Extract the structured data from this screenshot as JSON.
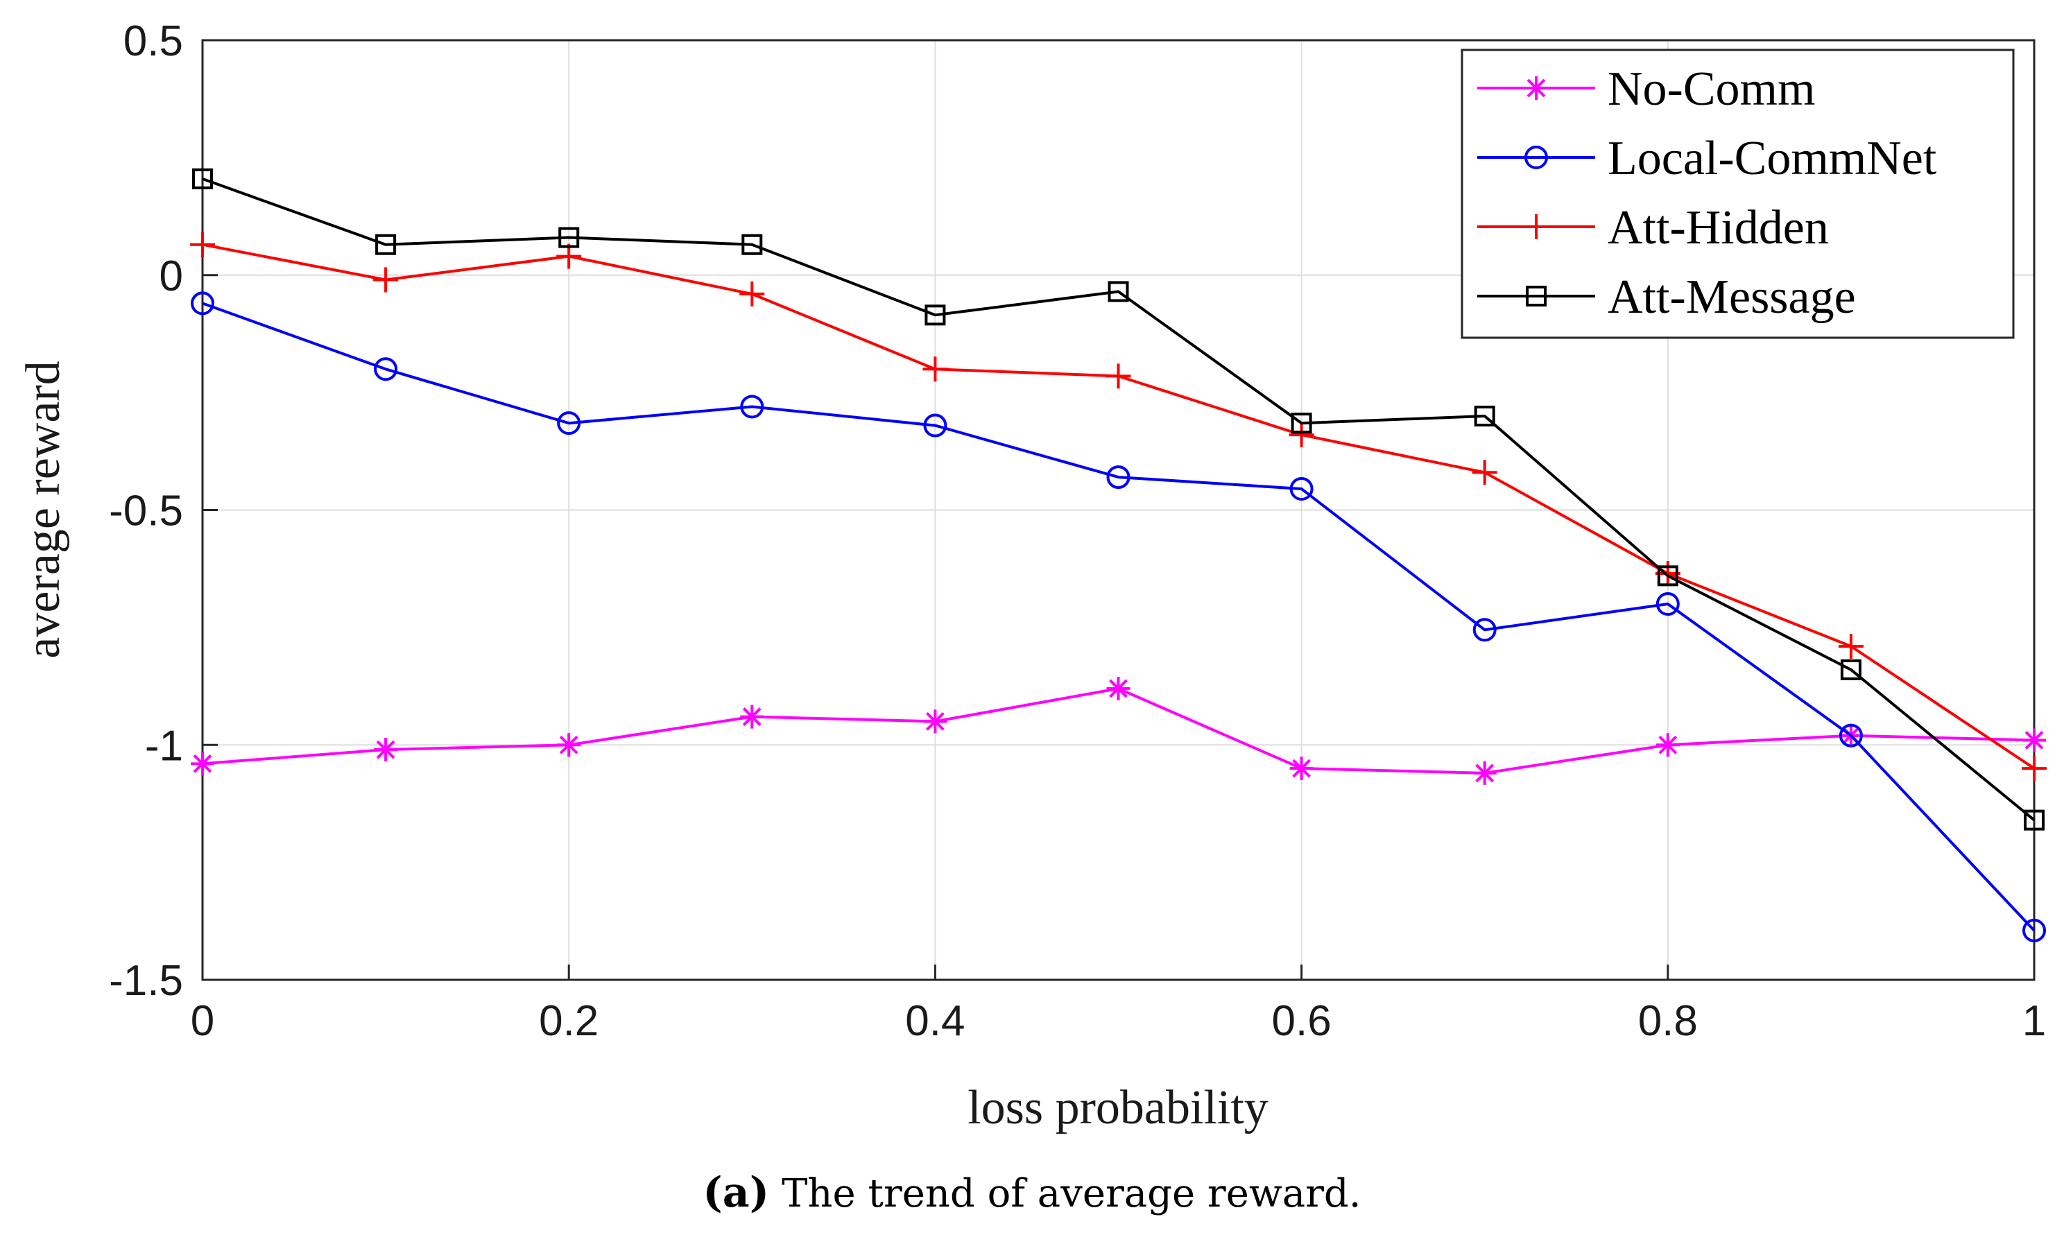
{
  "chart_data": {
    "type": "line",
    "title": "",
    "xlabel": "loss probability",
    "ylabel": "average reward",
    "xlim": [
      0,
      1
    ],
    "ylim": [
      -1.5,
      0.5
    ],
    "x_ticks": [
      0,
      0.2,
      0.4,
      0.6,
      0.8,
      1
    ],
    "x_tick_labels": [
      "0",
      "0.2",
      "0.4",
      "0.6",
      "0.8",
      "1"
    ],
    "y_ticks": [
      -1.5,
      -1,
      -0.5,
      0,
      0.5
    ],
    "y_tick_labels": [
      "-1.5",
      "-1",
      "-0.5",
      "0",
      "0.5"
    ],
    "grid": true,
    "legend_position": "top-right",
    "x": [
      0,
      0.1,
      0.2,
      0.3,
      0.4,
      0.5,
      0.6,
      0.7,
      0.8,
      0.9,
      1.0
    ],
    "series": [
      {
        "name": "No-Comm",
        "color": "#ff00ff",
        "marker": "asterisk",
        "values": [
          -1.04,
          -1.01,
          -1.0,
          -0.94,
          -0.95,
          -0.88,
          -1.05,
          -1.06,
          -1.0,
          -0.98,
          -0.99
        ]
      },
      {
        "name": "Local-CommNet",
        "color": "#0000ff",
        "marker": "circle",
        "values": [
          -0.06,
          -0.2,
          -0.315,
          -0.28,
          -0.32,
          -0.43,
          -0.455,
          -0.755,
          -0.7,
          -0.98,
          -1.395
        ]
      },
      {
        "name": "Att-Hidden",
        "color": "#ff0000",
        "marker": "plus",
        "values": [
          0.065,
          -0.01,
          0.04,
          -0.04,
          -0.2,
          -0.215,
          -0.34,
          -0.42,
          -0.635,
          -0.79,
          -1.05
        ]
      },
      {
        "name": "Att-Message",
        "color": "#000000",
        "marker": "square",
        "values": [
          0.205,
          0.065,
          0.08,
          0.065,
          -0.085,
          -0.035,
          -0.315,
          -0.3,
          -0.64,
          -0.84,
          -1.16
        ]
      }
    ]
  },
  "caption": {
    "label": "(a)",
    "text": "The trend of average reward."
  }
}
